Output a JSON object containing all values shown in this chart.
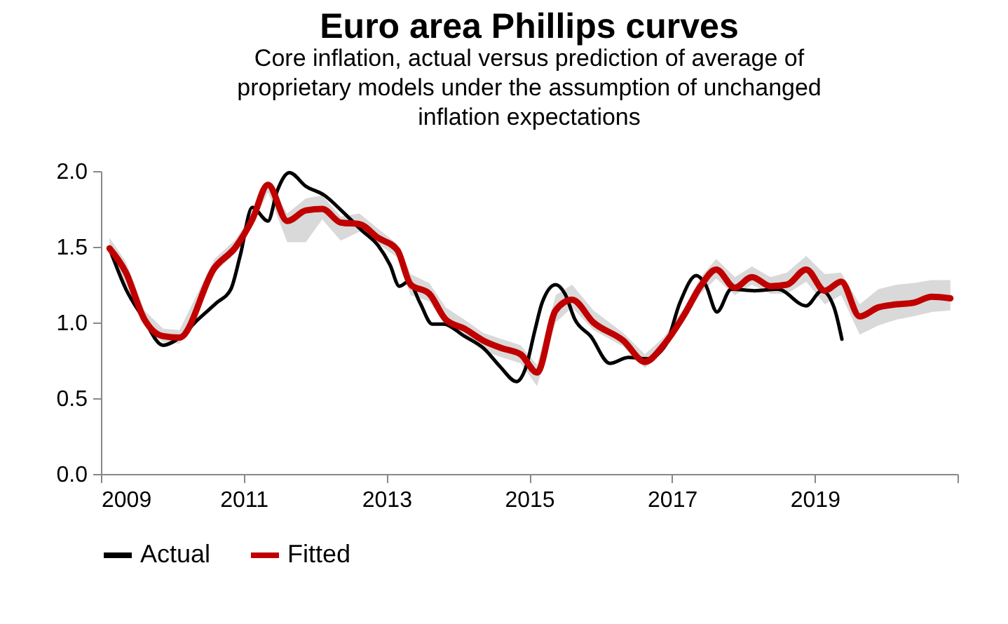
{
  "chart_data": {
    "type": "line",
    "title": "Euro area Phillips curves",
    "subtitle": "Core inflation, actual versus prediction of average of proprietary models under the assumption of unchanged inflation expectations",
    "xlim": [
      2009,
      2021
    ],
    "xticks": [
      2009,
      2011,
      2013,
      2015,
      2017,
      2019,
      {
        "value": 2021,
        "label": null
      }
    ],
    "ylim": [
      0,
      2
    ],
    "yticks": [
      {
        "value": 0,
        "label": "0.0"
      },
      {
        "value": 0.5,
        "label": "0.5"
      },
      {
        "value": 1,
        "label": "1.0"
      },
      {
        "value": 1.5,
        "label": "1.5"
      },
      {
        "value": 2,
        "label": "2.0"
      }
    ],
    "legend": "bottom",
    "grid": false,
    "series": [
      {
        "name": "Actual",
        "color": "#000000",
        "x": [
          2009.12,
          2009.35,
          2009.58,
          2009.87,
          2010.1,
          2010.36,
          2010.62,
          2010.82,
          2010.95,
          2011.12,
          2011.34,
          2011.47,
          2011.64,
          2011.87,
          2012.13,
          2012.39,
          2012.65,
          2012.88,
          2013.05,
          2013.18,
          2013.31,
          2013.47,
          2013.64,
          2013.8,
          2014.09,
          2014.36,
          2014.59,
          2014.82,
          2014.95,
          2015.08,
          2015.18,
          2015.37,
          2015.5,
          2015.64,
          2015.86,
          2016.13,
          2016.39,
          2016.65,
          2016.91,
          2017.11,
          2017.34,
          2017.47,
          2017.63,
          2017.83,
          2018.16,
          2018.48,
          2018.88,
          2019.1,
          2019.27,
          2019.38
        ],
        "values": [
          1.49,
          1.22,
          1.04,
          0.85,
          0.9,
          1.02,
          1.13,
          1.22,
          1.44,
          1.76,
          1.67,
          1.87,
          1.99,
          1.9,
          1.84,
          1.73,
          1.61,
          1.51,
          1.38,
          1.24,
          1.27,
          1.13,
          0.99,
          0.99,
          0.91,
          0.83,
          0.71,
          0.61,
          0.7,
          0.95,
          1.13,
          1.25,
          1.19,
          1.02,
          0.91,
          0.73,
          0.77,
          0.76,
          0.85,
          1.13,
          1.31,
          1.25,
          1.07,
          1.22,
          1.21,
          1.22,
          1.11,
          1.21,
          1.1,
          0.89
        ]
      },
      {
        "name": "Fitted",
        "color": "#c00000",
        "x": [
          2009.12,
          2009.35,
          2009.61,
          2009.87,
          2010.1,
          2010.59,
          2010.89,
          2011.12,
          2011.34,
          2011.61,
          2011.87,
          2012.1,
          2012.36,
          2012.62,
          2012.88,
          2013.15,
          2013.34,
          2013.6,
          2013.83,
          2014.09,
          2014.36,
          2014.62,
          2014.88,
          2015.11,
          2015.37,
          2015.6,
          2015.9,
          2016.32,
          2016.62,
          2016.88,
          2017.17,
          2017.4,
          2017.62,
          2017.88,
          2018.12,
          2018.38,
          2018.61,
          2018.88,
          2019.14,
          2019.37,
          2019.63,
          2019.89,
          2020.15,
          2020.38,
          2020.64,
          2020.9
        ],
        "values": [
          1.49,
          1.33,
          1.02,
          0.91,
          0.9,
          1.36,
          1.5,
          1.68,
          1.91,
          1.67,
          1.74,
          1.75,
          1.66,
          1.65,
          1.56,
          1.48,
          1.25,
          1.19,
          1.02,
          0.96,
          0.88,
          0.83,
          0.79,
          0.67,
          1.08,
          1.15,
          1.0,
          0.88,
          0.74,
          0.85,
          1.05,
          1.24,
          1.35,
          1.23,
          1.3,
          1.24,
          1.25,
          1.35,
          1.21,
          1.27,
          1.04,
          1.1,
          1.12,
          1.13,
          1.17,
          1.16
        ],
        "lower": [
          1.44,
          1.25,
          0.98,
          0.87,
          0.86,
          1.33,
          1.46,
          1.64,
          1.86,
          1.53,
          1.53,
          1.68,
          1.54,
          1.6,
          1.52,
          1.43,
          1.18,
          1.14,
          0.98,
          0.9,
          0.81,
          0.77,
          0.73,
          0.58,
          1.0,
          1.1,
          0.95,
          0.84,
          0.7,
          0.81,
          1.01,
          1.19,
          1.29,
          1.18,
          1.25,
          1.19,
          1.19,
          1.27,
          1.12,
          1.18,
          0.92,
          0.98,
          1.02,
          1.04,
          1.07,
          1.08
        ],
        "upper": [
          1.56,
          1.4,
          1.08,
          0.96,
          0.95,
          1.42,
          1.55,
          1.72,
          1.93,
          1.72,
          1.82,
          1.84,
          1.7,
          1.72,
          1.62,
          1.52,
          1.32,
          1.26,
          1.1,
          1.02,
          0.93,
          0.89,
          0.85,
          0.72,
          1.18,
          1.25,
          1.08,
          0.93,
          0.79,
          0.9,
          1.1,
          1.3,
          1.42,
          1.3,
          1.37,
          1.3,
          1.33,
          1.44,
          1.32,
          1.33,
          1.12,
          1.22,
          1.25,
          1.26,
          1.28,
          1.28
        ]
      }
    ]
  }
}
